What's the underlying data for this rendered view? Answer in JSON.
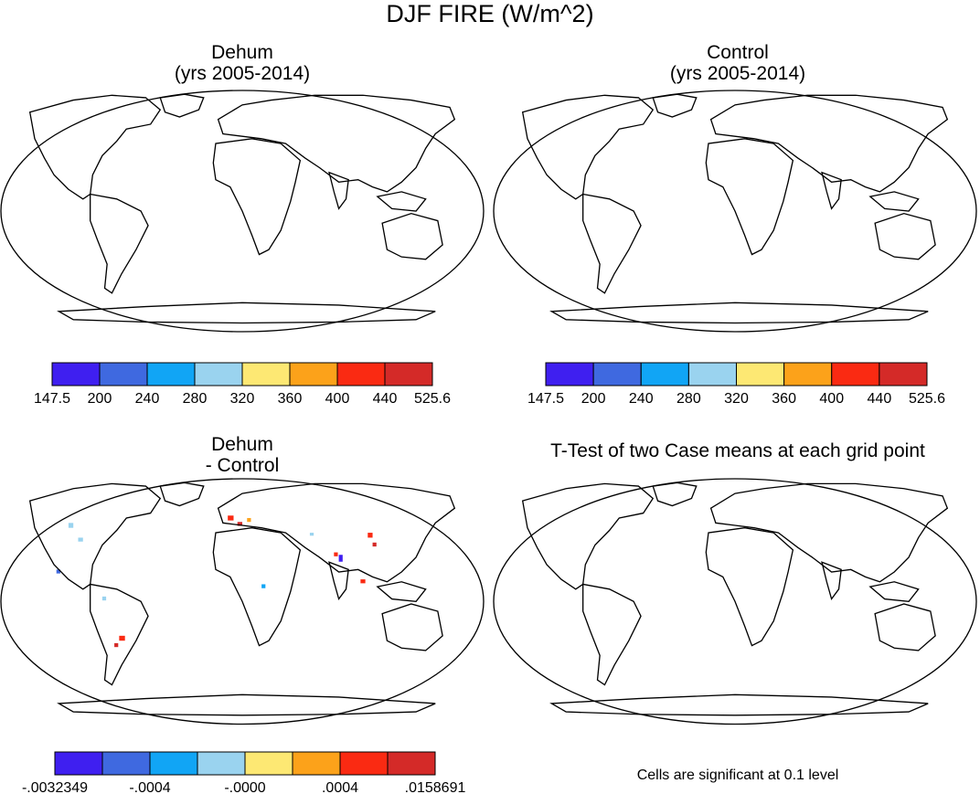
{
  "title": "DJF FIRE (W/m^2)",
  "panels": [
    {
      "id": "dehum",
      "title_line1": "Dehum",
      "title_line2": "(yrs 2005-2014)"
    },
    {
      "id": "control",
      "title_line1": "Control",
      "title_line2": "(yrs 2005-2014)"
    },
    {
      "id": "diff",
      "title_line1": "Dehum",
      "title_line2": "- Control"
    },
    {
      "id": "ttest",
      "title_line1": "T-Test of two Case means at each grid point",
      "title_line2": ""
    }
  ],
  "colorbar_main": {
    "colors": [
      "#3f1ff0",
      "#3f69e0",
      "#11a5f5",
      "#9ad3ef",
      "#fde873",
      "#fca21a",
      "#fa2a12",
      "#d42a28"
    ],
    "labels": [
      "147.5",
      "200",
      "240",
      "280",
      "320",
      "360",
      "400",
      "440",
      "525.6"
    ]
  },
  "colorbar_diff": {
    "colors": [
      "#3f1ff0",
      "#3f69e0",
      "#11a5f5",
      "#9ad3ef",
      "#fde873",
      "#fca21a",
      "#fa2a12",
      "#d42a28"
    ],
    "labels": [
      "-.0032349",
      "-.0004",
      "-.0000",
      ".0004",
      ".0158691"
    ]
  },
  "significance_note": "Cells are significant at 0.1 level",
  "colors": {
    "ocean": "#ffffff",
    "coast": "#000000"
  }
}
